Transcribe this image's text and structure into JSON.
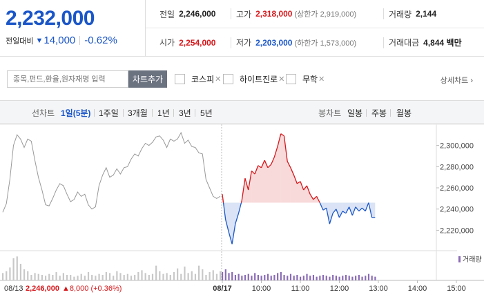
{
  "quote": {
    "price": "2,232,000",
    "change_label": "전일대비",
    "change_arrow": "▼",
    "change_value": "14,000",
    "change_pct": "-0.62%",
    "row1": {
      "prev_label": "전일",
      "prev_value": "2,246,000",
      "high_label": "고가",
      "high_value": "2,318,000",
      "upper_limit": "(상한가 2,919,000)",
      "volume_label": "거래량",
      "volume_value": "2,144"
    },
    "row2": {
      "open_label": "시가",
      "open_value": "2,254,000",
      "low_label": "저가",
      "low_value": "2,203,000",
      "lower_limit": "(하한가 1,573,000)",
      "amount_label": "거래대금",
      "amount_value": "4,844 백만"
    }
  },
  "toolbar": {
    "search_placeholder": "종목,펀드,환율,원자재명 입력",
    "add_button": "차트추가",
    "compare": [
      "코스피",
      "하이트진로",
      "무학"
    ],
    "close_glyph": "✕",
    "detail_link": "상세차트"
  },
  "periods": {
    "line_label": "선차트",
    "line_options": [
      "1일(5분)",
      "1주일",
      "3개월",
      "1년",
      "3년",
      "5년"
    ],
    "candle_label": "봉차트",
    "candle_options": [
      "일봉",
      "주봉",
      "월봉"
    ]
  },
  "colors": {
    "up": "#d6171b",
    "down": "#1a56c8",
    "prev_line": "#999999",
    "volume_prev": "#c8c8c8",
    "volume_today": "#8a6bb5"
  },
  "chart_data": {
    "type": "line",
    "ylim": [
      2204000,
      2316000
    ],
    "y_ticks": [
      "2,300,000",
      "2,280,000",
      "2,260,000",
      "2,240,000",
      "2,220,000"
    ],
    "y_tick_values": [
      2300000,
      2280000,
      2260000,
      2240000,
      2220000
    ],
    "baseline": 2246000,
    "x_tick_labels": [
      "08/17",
      "10:00",
      "11:00",
      "12:00",
      "13:00",
      "14:00",
      "15:00"
    ],
    "x_tick_minutes": [
      0,
      60,
      120,
      180,
      240,
      300,
      360
    ],
    "volume_legend": "거래량",
    "prev_session": {
      "date": "08/13",
      "close": "2,246,000",
      "change": "▲8,000 (+0.36%)",
      "series": [
        2237000,
        2245000,
        2268000,
        2300000,
        2310000,
        2306000,
        2298000,
        2306000,
        2304000,
        2286000,
        2270000,
        2258000,
        2244000,
        2243000,
        2250000,
        2258000,
        2264000,
        2262000,
        2254000,
        2247000,
        2249000,
        2256000,
        2252000,
        2254000,
        2244000,
        2240000,
        2242000,
        2262000,
        2272000,
        2279000,
        2270000,
        2272000,
        2278000,
        2273000,
        2279000,
        2280000,
        2287000,
        2292000,
        2290000,
        2297000,
        2302000,
        2300000,
        2303000,
        2308000,
        2309000,
        2305000,
        2298000,
        2306000,
        2304000,
        2306000,
        2312000,
        2302000,
        2305000,
        2299000,
        2298000,
        2293000,
        2292000,
        2268000,
        2260000,
        2252000,
        2250000,
        2252000
      ],
      "volume": [
        8,
        10,
        14,
        24,
        26,
        18,
        12,
        10,
        6,
        8,
        7,
        6,
        5,
        7,
        6,
        9,
        5,
        8,
        6,
        6,
        4,
        5,
        7,
        5,
        9,
        6,
        5,
        7,
        6,
        9,
        8,
        5,
        10,
        8,
        6,
        7,
        5,
        6,
        9,
        11,
        8,
        6,
        7,
        16,
        10,
        7,
        8,
        6,
        9,
        13,
        7,
        15,
        8,
        10,
        7,
        16,
        12,
        6,
        9,
        11,
        7,
        10
      ]
    },
    "today": {
      "open": 2254000,
      "series": [
        2254000,
        2230000,
        2218000,
        2207000,
        2226000,
        2236000,
        2248000,
        2269000,
        2258000,
        2276000,
        2273000,
        2281000,
        2279000,
        2286000,
        2279000,
        2282000,
        2289000,
        2299000,
        2311000,
        2309000,
        2285000,
        2279000,
        2272000,
        2264000,
        2266000,
        2258000,
        2262000,
        2254000,
        2249000,
        2252000,
        2246000,
        2239000,
        2241000,
        2226000,
        2236000,
        2240000,
        2232000,
        2238000,
        2236000,
        2242000,
        2234000,
        2242000,
        2238000,
        2241000,
        2238000,
        2246000,
        2232000,
        2232000
      ],
      "volume": [
        9,
        12,
        8,
        9,
        6,
        7,
        5,
        6,
        7,
        5,
        8,
        6,
        5,
        6,
        7,
        5,
        6,
        8,
        9,
        6,
        5,
        7,
        5,
        6,
        4,
        5,
        7,
        5,
        6,
        4,
        5,
        6,
        5,
        4,
        6,
        5,
        4,
        5,
        6,
        5,
        4,
        5,
        6,
        4,
        5,
        7,
        5,
        4
      ]
    }
  }
}
